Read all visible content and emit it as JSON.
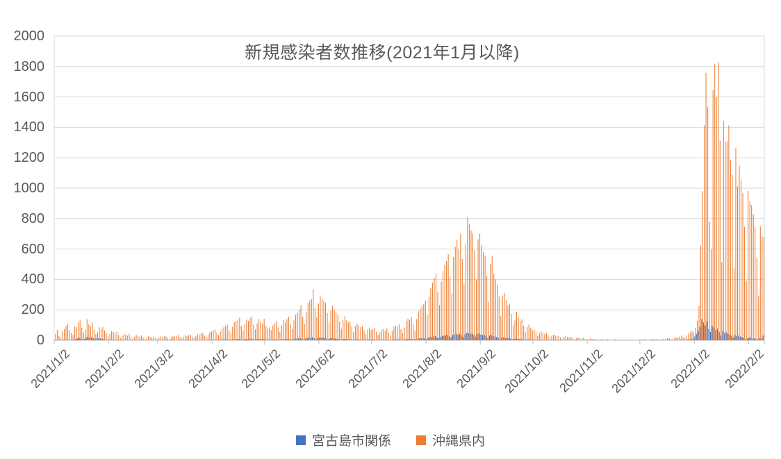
{
  "colors": {
    "text": "#595959",
    "grid": "#D9D9D9",
    "axis": "#BFBFBF",
    "background": "#FFFFFF",
    "series1": "#4472C4",
    "series2": "#ED7D31"
  },
  "chart_data": {
    "type": "bar",
    "title": "新規感染者数推移(2021年1月以降)",
    "xlabel": "",
    "ylabel": "",
    "ylim": [
      0,
      2000
    ],
    "y_tick_interval": 200,
    "y_tick_labels": [
      "2000",
      "1800",
      "1600",
      "1400",
      "1200",
      "1000",
      "800",
      "600",
      "400",
      "200",
      "0"
    ],
    "x_start_date": "2021/1/2",
    "x_unit": "day",
    "x_tick_labels": [
      "2021/1/2",
      "2021/2/2",
      "2021/3/2",
      "2021/4/2",
      "2021/5/2",
      "2021/6/2",
      "2021/7/2",
      "2021/8/2",
      "2021/9/2",
      "2021/10/2",
      "2021/11/2",
      "2021/12/2",
      "2022/1/2",
      "2022/2/2"
    ],
    "x_tick_indices": [
      0,
      31,
      59,
      90,
      120,
      151,
      181,
      212,
      243,
      273,
      304,
      334,
      365,
      396
    ],
    "grid": "horizontal",
    "legend_position": "bottom",
    "series": [
      {
        "name": "宮古島市関係",
        "color": "#4472C4",
        "values": [
          2,
          3,
          1,
          0,
          2,
          4,
          3,
          5,
          2,
          1,
          3,
          6,
          8,
          12,
          16,
          10,
          7,
          9,
          19,
          23,
          17,
          21,
          14,
          8,
          11,
          15,
          12,
          9,
          6,
          4,
          3,
          2,
          4,
          3,
          2,
          3,
          1,
          0,
          1,
          2,
          2,
          1,
          2,
          1,
          0,
          1,
          2,
          1,
          1,
          2,
          1,
          0,
          0,
          1,
          1,
          0,
          1,
          0,
          0,
          1,
          1,
          0,
          1,
          2,
          1,
          0,
          1,
          1,
          2,
          1,
          2,
          1,
          0,
          1,
          2,
          1,
          2,
          2,
          1,
          0,
          1,
          2,
          2,
          3,
          2,
          1,
          1,
          2,
          3,
          2,
          3,
          4,
          2,
          1,
          3,
          4,
          5,
          4,
          6,
          3,
          2,
          5,
          7,
          6,
          8,
          9,
          5,
          3,
          6,
          8,
          7,
          9,
          10,
          6,
          4,
          7,
          9,
          8,
          6,
          8,
          5,
          4,
          5,
          3,
          5,
          6,
          7,
          4,
          2,
          5,
          7,
          6,
          8,
          9,
          6,
          4,
          7,
          10,
          11,
          12,
          14,
          9,
          6,
          11,
          15,
          16,
          17,
          21,
          13,
          9,
          15,
          18,
          17,
          16,
          15,
          11,
          7,
          12,
          14,
          12,
          11,
          10,
          7,
          4,
          8,
          9,
          8,
          7,
          7,
          5,
          3,
          5,
          6,
          5,
          5,
          5,
          4,
          2,
          4,
          5,
          4,
          4,
          5,
          3,
          2,
          3,
          4,
          4,
          3,
          4,
          3,
          2,
          3,
          5,
          6,
          5,
          6,
          4,
          2,
          5,
          7,
          8,
          8,
          9,
          6,
          4,
          8,
          11,
          12,
          13,
          14,
          15,
          9,
          17,
          20,
          22,
          25,
          27,
          19,
          13,
          23,
          28,
          30,
          32,
          35,
          25,
          18,
          34,
          38,
          41,
          36,
          44,
          32,
          22,
          39,
          50,
          47,
          44,
          43,
          36,
          24,
          41,
          43,
          38,
          35,
          34,
          26,
          15,
          31,
          34,
          27,
          24,
          22,
          17,
          10,
          18,
          19,
          16,
          14,
          15,
          11,
          6,
          8,
          11,
          9,
          8,
          8,
          6,
          3,
          5,
          6,
          5,
          4,
          4,
          3,
          2,
          3,
          3,
          3,
          2,
          3,
          2,
          1,
          2,
          2,
          2,
          2,
          2,
          1,
          0,
          1,
          2,
          1,
          1,
          1,
          1,
          0,
          1,
          1,
          1,
          1,
          1,
          0,
          0,
          1,
          1,
          0,
          0,
          1,
          0,
          0,
          0,
          1,
          0,
          0,
          1,
          0,
          0,
          0,
          1,
          0,
          0,
          0,
          0,
          0,
          0,
          0,
          0,
          0,
          0,
          0,
          0,
          0,
          0,
          0,
          0,
          1,
          0,
          0,
          0,
          1,
          0,
          0,
          1,
          0,
          0,
          1,
          1,
          1,
          1,
          2,
          1,
          0,
          1,
          2,
          2,
          3,
          4,
          2,
          1,
          3,
          5,
          6,
          8,
          10,
          25,
          42,
          61,
          88,
          140,
          118,
          97,
          125,
          74,
          55,
          96,
          84,
          68,
          77,
          56,
          31,
          62,
          48,
          54,
          43,
          38,
          29,
          18,
          34,
          27,
          31,
          24,
          21,
          15,
          9,
          12,
          18,
          15,
          11,
          14,
          8,
          5,
          16,
          12,
          31
        ]
      },
      {
        "name": "沖縄県内",
        "color": "#ED7D31",
        "values": [
          41,
          69,
          29,
          18,
          58,
          75,
          94,
          109,
          65,
          47,
          36,
          91,
          87,
          119,
          132,
          83,
          52,
          71,
          139,
          104,
          93,
          118,
          71,
          41,
          54,
          85,
          73,
          88,
          64,
          46,
          26,
          42,
          60,
          55,
          47,
          58,
          33,
          15,
          28,
          41,
          37,
          30,
          42,
          21,
          10,
          22,
          36,
          29,
          25,
          31,
          18,
          8,
          16,
          27,
          22,
          19,
          24,
          14,
          7,
          18,
          25,
          21,
          26,
          29,
          16,
          9,
          20,
          27,
          24,
          28,
          33,
          19,
          11,
          23,
          31,
          27,
          34,
          38,
          24,
          14,
          29,
          41,
          36,
          44,
          49,
          31,
          22,
          38,
          52,
          58,
          65,
          71,
          47,
          33,
          56,
          78,
          86,
          95,
          103,
          66,
          49,
          88,
          118,
          126,
          135,
          148,
          96,
          62,
          105,
          136,
          128,
          145,
          157,
          103,
          71,
          112,
          139,
          123,
          108,
          141,
          96,
          77,
          85,
          68,
          98,
          113,
          127,
          84,
          55,
          99,
          132,
          119,
          137,
          155,
          108,
          74,
          131,
          168,
          181,
          203,
          231,
          156,
          109,
          188,
          245,
          262,
          271,
          335,
          214,
          151,
          242,
          291,
          274,
          258,
          247,
          179,
          112,
          193,
          227,
          201,
          184,
          169,
          122,
          76,
          131,
          158,
          133,
          117,
          124,
          89,
          54,
          93,
          109,
          98,
          87,
          92,
          66,
          41,
          71,
          84,
          69,
          75,
          81,
          57,
          35,
          52,
          68,
          73,
          64,
          78,
          51,
          33,
          59,
          88,
          97,
          92,
          105,
          71,
          46,
          83,
          127,
          141,
          135,
          152,
          108,
          64,
          139,
          192,
          208,
          223,
          239,
          261,
          164,
          288,
          343,
          378,
          412,
          439,
          318,
          231,
          385,
          454,
          497,
          521,
          566,
          419,
          306,
          547,
          614,
          660,
          598,
          701,
          534,
          371,
          629,
          809,
          766,
          723,
          705,
          591,
          398,
          664,
          701,
          625,
          581,
          557,
          422,
          254,
          502,
          555,
          438,
          401,
          366,
          287,
          159,
          294,
          312,
          265,
          229,
          241,
          174,
          98,
          131,
          188,
          154,
          127,
          138,
          96,
          51,
          87,
          104,
          83,
          66,
          71,
          52,
          28,
          44,
          57,
          49,
          41,
          46,
          33,
          17,
          29,
          36,
          31,
          26,
          29,
          19,
          9,
          21,
          27,
          23,
          18,
          22,
          14,
          7,
          13,
          18,
          15,
          12,
          16,
          10,
          5,
          9,
          12,
          8,
          7,
          10,
          6,
          2,
          6,
          9,
          7,
          5,
          8,
          4,
          1,
          4,
          7,
          5,
          4,
          6,
          3,
          1,
          3,
          5,
          4,
          3,
          4,
          2,
          1,
          3,
          4,
          6,
          5,
          7,
          4,
          2,
          5,
          8,
          6,
          7,
          9,
          5,
          3,
          7,
          11,
          9,
          13,
          16,
          10,
          6,
          14,
          19,
          17,
          25,
          31,
          21,
          13,
          29,
          44,
          51,
          64,
          52,
          84,
          130,
          225,
          623,
          981,
          1414,
          1759,
          1533,
          779,
          600,
          1644,
          1817,
          1596,
          1829,
          1313,
          515,
          1443,
          1306,
          1309,
          1414,
          1185,
          1088,
          477,
          1266,
          1012,
          1147,
          1057,
          967,
          744,
          391,
          984,
          914,
          889,
          829,
          743,
          539,
          289,
          749,
          683,
          681
        ]
      }
    ]
  }
}
